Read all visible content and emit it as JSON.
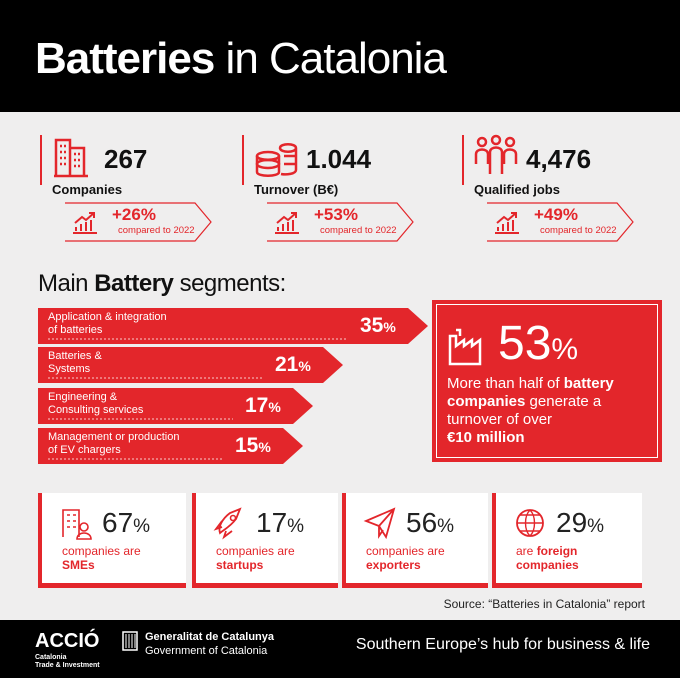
{
  "header": {
    "title_bold": "Batteries",
    "title_rest": "in Catalonia"
  },
  "stats": [
    {
      "value": "267",
      "label": "Companies",
      "change": "+26%",
      "compared": "compared to 2022"
    },
    {
      "value": "1.044",
      "label": "Turnover (B€)",
      "change": "+53%",
      "compared": "compared to 2022"
    },
    {
      "value": "4,476",
      "label": "Qualified jobs",
      "change": "+49%",
      "compared": "compared to 2022"
    }
  ],
  "segments": {
    "title_pre": "Main",
    "title_bold": "Battery",
    "title_post": "segments:",
    "items": [
      {
        "lines": [
          "Application & integration",
          "of batteries"
        ],
        "value": 35,
        "unit": "%"
      },
      {
        "lines": [
          "Batteries &",
          "Systems"
        ],
        "value": 21,
        "unit": "%"
      },
      {
        "lines": [
          "Engineering &",
          "Consulting services"
        ],
        "value": 17,
        "unit": "%"
      },
      {
        "lines": [
          "Management or production",
          "of EV chargers"
        ],
        "value": 15,
        "unit": "%"
      }
    ]
  },
  "highlight": {
    "value": 53,
    "unit": "%",
    "text": [
      "More than half of",
      "battery",
      "companies",
      "generate a",
      "turnover of over",
      "€10 million"
    ]
  },
  "profile": [
    {
      "value": 67,
      "unit": "%",
      "lines": [
        [
          {
            "text": "companies are"
          }
        ],
        [
          {
            "text": "SMEs",
            "bold": true
          }
        ]
      ]
    },
    {
      "value": 17,
      "unit": "%",
      "lines": [
        [
          {
            "text": "companies are"
          }
        ],
        [
          {
            "text": "startups",
            "bold": true
          }
        ]
      ]
    },
    {
      "value": 56,
      "unit": "%",
      "lines": [
        [
          {
            "text": "companies are"
          }
        ],
        [
          {
            "text": "exporters",
            "bold": true
          }
        ]
      ]
    },
    {
      "value": 29,
      "unit": "%",
      "lines": [
        [
          {
            "text": "are"
          },
          {
            "text": "foreign",
            "bold": true
          }
        ],
        [
          {
            "text": "companies",
            "bold": true
          }
        ]
      ]
    }
  ],
  "source": "Source: “Batteries in Catalonia” report",
  "footer": {
    "brand": "ACCIÓ",
    "brand_sub": [
      "Catalonia",
      "Trade & Investment"
    ],
    "gov": "Generalitat de Catalunya",
    "gov_en": "Government of Catalonia",
    "tagline": "Southern Europe’s hub for business & life"
  }
}
